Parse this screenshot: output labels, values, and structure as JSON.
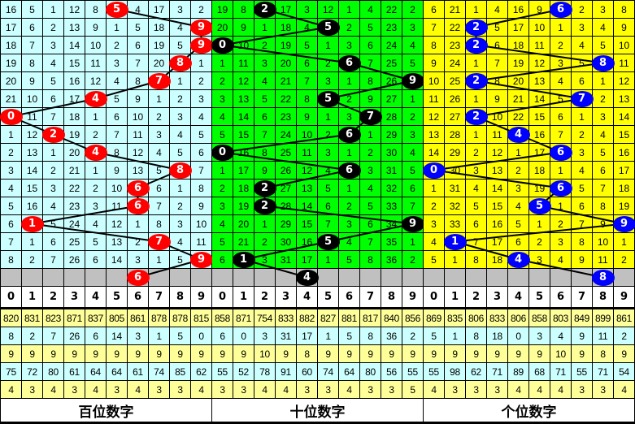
{
  "chart_data": {
    "type": "table",
    "columns": [
      "0",
      "1",
      "2",
      "3",
      "4",
      "5",
      "6",
      "7",
      "8",
      "9"
    ],
    "panels": [
      {
        "title": "百位数字",
        "cell_color": "#ccffff",
        "ball_color": "#ff0000",
        "rows": [
          [
            16,
            5,
            1,
            12,
            8,
            5,
            4,
            17,
            3,
            2
          ],
          [
            17,
            6,
            2,
            13,
            9,
            1,
            5,
            18,
            4,
            9
          ],
          [
            18,
            7,
            3,
            14,
            10,
            2,
            6,
            19,
            5,
            9
          ],
          [
            19,
            8,
            4,
            15,
            11,
            3,
            7,
            20,
            8,
            1
          ],
          [
            20,
            9,
            5,
            16,
            12,
            4,
            8,
            7,
            1,
            2
          ],
          [
            21,
            10,
            6,
            17,
            4,
            5,
            9,
            1,
            2,
            3
          ],
          [
            0,
            11,
            7,
            18,
            1,
            6,
            10,
            2,
            3,
            4
          ],
          [
            1,
            12,
            2,
            19,
            2,
            7,
            11,
            3,
            4,
            5
          ],
          [
            2,
            13,
            1,
            20,
            4,
            8,
            12,
            4,
            5,
            6
          ],
          [
            3,
            14,
            2,
            21,
            1,
            9,
            13,
            5,
            8,
            7
          ],
          [
            4,
            15,
            3,
            22,
            2,
            10,
            6,
            6,
            1,
            8
          ],
          [
            5,
            16,
            4,
            23,
            3,
            11,
            6,
            7,
            2,
            9
          ],
          [
            6,
            1,
            5,
            24,
            4,
            12,
            1,
            8,
            3,
            10
          ],
          [
            7,
            1,
            6,
            25,
            5,
            13,
            2,
            7,
            4,
            11
          ],
          [
            8,
            2,
            7,
            26,
            6,
            14,
            3,
            1,
            5,
            9
          ]
        ],
        "hits": [
          5,
          9,
          9,
          8,
          7,
          4,
          0,
          2,
          4,
          8,
          6,
          6,
          1,
          7,
          9
        ],
        "next": 6,
        "stats": [
          [
            820,
            831,
            823,
            871,
            837,
            805,
            861,
            878,
            878,
            815
          ],
          [
            8,
            2,
            7,
            26,
            6,
            14,
            3,
            1,
            5,
            0
          ],
          [
            9,
            9,
            9,
            9,
            9,
            9,
            9,
            9,
            9,
            9
          ],
          [
            75,
            72,
            80,
            61,
            64,
            64,
            61,
            74,
            85,
            62
          ],
          [
            4,
            3,
            4,
            3,
            4,
            3,
            4,
            3,
            3,
            4
          ]
        ]
      },
      {
        "title": "十位数字",
        "cell_color": "#00ff00",
        "ball_color": "#000000",
        "rows": [
          [
            19,
            8,
            2,
            17,
            3,
            12,
            1,
            4,
            22,
            2
          ],
          [
            20,
            9,
            1,
            18,
            4,
            5,
            2,
            5,
            23,
            3
          ],
          [
            0,
            10,
            2,
            19,
            5,
            1,
            3,
            6,
            24,
            4
          ],
          [
            1,
            11,
            3,
            20,
            6,
            2,
            6,
            7,
            25,
            5
          ],
          [
            2,
            12,
            4,
            21,
            7,
            3,
            1,
            8,
            26,
            9
          ],
          [
            3,
            13,
            5,
            22,
            8,
            5,
            2,
            9,
            27,
            1
          ],
          [
            4,
            14,
            6,
            23,
            9,
            1,
            3,
            7,
            28,
            2
          ],
          [
            5,
            15,
            7,
            24,
            10,
            2,
            6,
            1,
            29,
            3
          ],
          [
            0,
            16,
            8,
            25,
            11,
            3,
            1,
            2,
            30,
            4
          ],
          [
            1,
            17,
            9,
            26,
            12,
            4,
            6,
            3,
            31,
            5
          ],
          [
            2,
            18,
            2,
            27,
            13,
            5,
            1,
            4,
            32,
            6
          ],
          [
            3,
            19,
            2,
            28,
            14,
            6,
            2,
            5,
            33,
            7
          ],
          [
            4,
            20,
            1,
            29,
            15,
            7,
            3,
            6,
            34,
            9
          ],
          [
            5,
            21,
            2,
            30,
            16,
            5,
            4,
            7,
            35,
            1
          ],
          [
            6,
            1,
            3,
            31,
            17,
            1,
            5,
            8,
            36,
            2
          ]
        ],
        "hits": [
          2,
          5,
          0,
          6,
          9,
          5,
          7,
          6,
          0,
          6,
          2,
          2,
          9,
          5,
          1
        ],
        "next": 4,
        "stats": [
          [
            858,
            871,
            754,
            833,
            882,
            827,
            881,
            817,
            840,
            856
          ],
          [
            6,
            0,
            3,
            31,
            17,
            1,
            5,
            8,
            36,
            2
          ],
          [
            9,
            9,
            10,
            9,
            8,
            9,
            9,
            9,
            9,
            9
          ],
          [
            55,
            52,
            78,
            91,
            60,
            74,
            64,
            80,
            56,
            55
          ],
          [
            3,
            3,
            4,
            4,
            3,
            3,
            4,
            3,
            3,
            5
          ]
        ]
      },
      {
        "title": "个位数字",
        "cell_color": "#ffff00",
        "ball_color": "#0000ff",
        "rows": [
          [
            6,
            21,
            1,
            4,
            16,
            9,
            6,
            2,
            3,
            8
          ],
          [
            7,
            22,
            2,
            5,
            17,
            10,
            1,
            3,
            4,
            9
          ],
          [
            8,
            23,
            2,
            6,
            18,
            11,
            2,
            4,
            5,
            10
          ],
          [
            9,
            24,
            1,
            7,
            19,
            12,
            3,
            5,
            8,
            11
          ],
          [
            10,
            25,
            2,
            8,
            20,
            13,
            4,
            6,
            1,
            12
          ],
          [
            11,
            26,
            1,
            9,
            21,
            14,
            5,
            7,
            2,
            13
          ],
          [
            12,
            27,
            2,
            10,
            22,
            15,
            6,
            1,
            3,
            14
          ],
          [
            13,
            28,
            1,
            11,
            4,
            16,
            7,
            2,
            4,
            15
          ],
          [
            14,
            29,
            2,
            12,
            1,
            17,
            6,
            3,
            5,
            16
          ],
          [
            0,
            30,
            3,
            13,
            2,
            18,
            1,
            4,
            6,
            17
          ],
          [
            1,
            31,
            4,
            14,
            3,
            19,
            6,
            5,
            7,
            18
          ],
          [
            2,
            32,
            5,
            15,
            4,
            5,
            1,
            6,
            8,
            19
          ],
          [
            3,
            33,
            6,
            16,
            5,
            1,
            2,
            7,
            9,
            9
          ],
          [
            4,
            1,
            7,
            17,
            6,
            2,
            3,
            8,
            10,
            1
          ],
          [
            5,
            1,
            8,
            18,
            4,
            3,
            4,
            9,
            11,
            2
          ]
        ],
        "hits": [
          6,
          2,
          2,
          8,
          2,
          7,
          2,
          4,
          6,
          0,
          6,
          5,
          9,
          1,
          4
        ],
        "next": 8,
        "stats": [
          [
            869,
            835,
            806,
            833,
            806,
            858,
            803,
            849,
            899,
            861
          ],
          [
            5,
            1,
            8,
            18,
            0,
            3,
            4,
            9,
            11,
            2
          ],
          [
            9,
            9,
            9,
            9,
            9,
            9,
            10,
            9,
            8,
            9
          ],
          [
            55,
            98,
            62,
            71,
            89,
            68,
            71,
            55,
            71,
            54
          ],
          [
            4,
            3,
            3,
            3,
            4,
            4,
            4,
            3,
            3,
            4
          ]
        ]
      }
    ],
    "colors": {
      "gray_row": "#c0c0c0",
      "stat_yellow": "#ffff99",
      "stat_cyan": "#ccffff",
      "line": "#000000"
    }
  }
}
